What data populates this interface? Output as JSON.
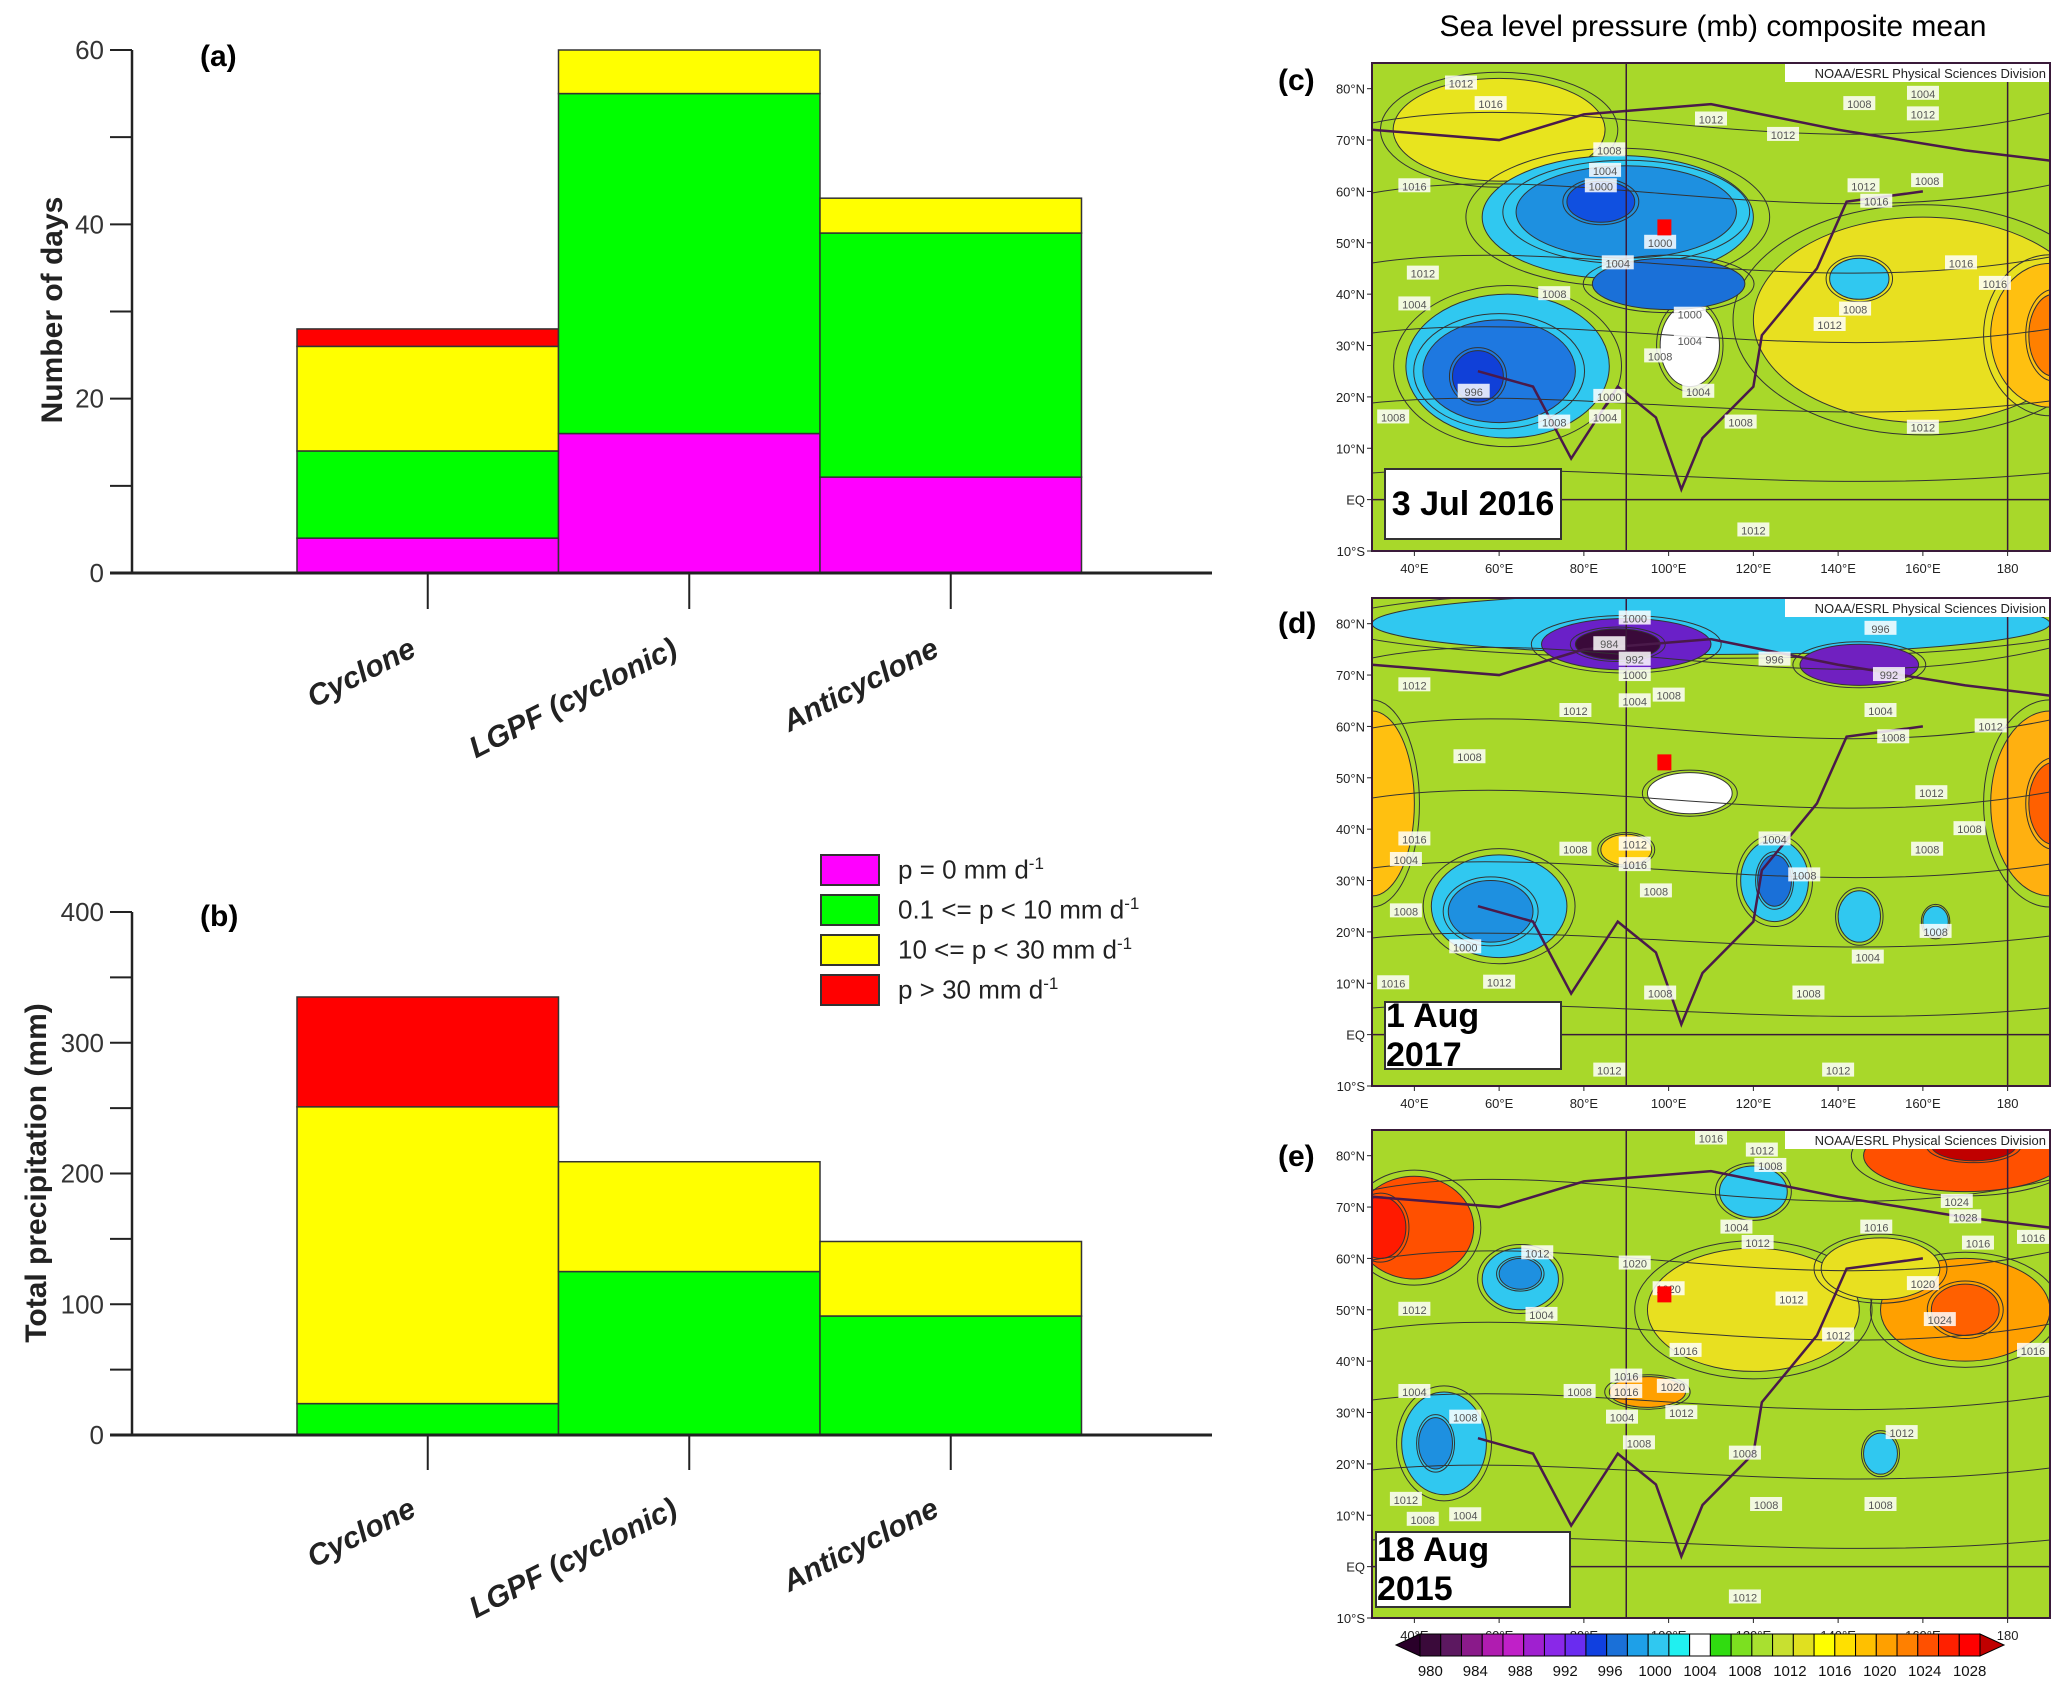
{
  "colors": {
    "p0": "#ff00ff",
    "p0_10": "#00ff00",
    "p10_30": "#ffff00",
    "p30": "#ff0000"
  },
  "chart_data": [
    {
      "type": "bar",
      "stacked": true,
      "panel": "(a)",
      "title": "",
      "xlabel": "",
      "ylabel": "Number of days",
      "ylim": [
        0,
        60
      ],
      "yticks": [
        0,
        20,
        40,
        60
      ],
      "categories": [
        "Cyclone",
        "LGPF (cyclonic)",
        "Anticyclone"
      ],
      "series": [
        {
          "name": "p = 0 mm d-1",
          "key": "p0",
          "values": [
            4,
            16,
            11
          ]
        },
        {
          "name": "0.1 <= p < 10 mm d-1",
          "key": "p0_10",
          "values": [
            10,
            39,
            28
          ]
        },
        {
          "name": "10 <= p < 30 mm d-1",
          "key": "p10_30",
          "values": [
            12,
            5,
            4
          ]
        },
        {
          "name": "p > 30 mm d-1",
          "key": "p30",
          "values": [
            2,
            0,
            0
          ]
        }
      ]
    },
    {
      "type": "bar",
      "stacked": true,
      "panel": "(b)",
      "title": "",
      "xlabel": "",
      "ylabel": "Total precipitation (mm)",
      "ylim": [
        0,
        400
      ],
      "yticks": [
        0,
        100,
        200,
        300,
        400
      ],
      "categories": [
        "Cyclone",
        "LGPF (cyclonic)",
        "Anticyclone"
      ],
      "series": [
        {
          "name": "p = 0 mm d-1",
          "key": "p0",
          "values": [
            0,
            0,
            0
          ]
        },
        {
          "name": "0.1 <= p < 10 mm d-1",
          "key": "p0_10",
          "values": [
            24,
            125,
            91
          ]
        },
        {
          "name": "10 <= p < 30 mm d-1",
          "key": "p10_30",
          "values": [
            227,
            84,
            57
          ]
        },
        {
          "name": "p > 30 mm d-1",
          "key": "p30",
          "values": [
            84,
            0,
            0
          ]
        }
      ],
      "legend": {
        "placement": "top-right",
        "entries": [
          {
            "key": "p0",
            "text": "p = 0 mm d",
            "sup": "-1"
          },
          {
            "key": "p0_10",
            "text": "0.1 <= p < 10 mm d",
            "sup": "-1"
          },
          {
            "key": "p10_30",
            "text": "10 <= p < 30 mm d",
            "sup": "-1"
          },
          {
            "key": "p30",
            "text": "p > 30 mm d",
            "sup": "-1"
          }
        ]
      }
    }
  ],
  "maps": {
    "title": "Sea level pressure (mb) composite mean",
    "credit": "NOAA/ESRL Physical Sciences Division",
    "lon_range": [
      30,
      190
    ],
    "lat_range": [
      -10,
      85
    ],
    "lon_ticks": [
      {
        "v": 40,
        "t": "40°E"
      },
      {
        "v": 60,
        "t": "60°E"
      },
      {
        "v": 80,
        "t": "80°E"
      },
      {
        "v": 100,
        "t": "100°E"
      },
      {
        "v": 120,
        "t": "120°E"
      },
      {
        "v": 140,
        "t": "140°E"
      },
      {
        "v": 160,
        "t": "160°E"
      },
      {
        "v": 180,
        "t": "180"
      }
    ],
    "lat_ticks": [
      {
        "v": 80,
        "t": "80°N"
      },
      {
        "v": 70,
        "t": "70°N"
      },
      {
        "v": 60,
        "t": "60°N"
      },
      {
        "v": 50,
        "t": "50°N"
      },
      {
        "v": 40,
        "t": "40°N"
      },
      {
        "v": 30,
        "t": "30°N"
      },
      {
        "v": 20,
        "t": "20°N"
      },
      {
        "v": 10,
        "t": "10°N"
      },
      {
        "v": 0,
        "t": "EQ"
      },
      {
        "v": -10,
        "t": "10°S"
      }
    ],
    "site": {
      "lon": 99,
      "lat": 53
    },
    "panels": [
      {
        "label": "(c)",
        "date": "3 Jul 2016",
        "contour_labels": [
          {
            "lon": 51,
            "lat": 81,
            "t": "1012"
          },
          {
            "lon": 58,
            "lat": 77,
            "t": "1016"
          },
          {
            "lon": 40,
            "lat": 61,
            "t": "1016"
          },
          {
            "lon": 42,
            "lat": 44,
            "t": "1012"
          },
          {
            "lon": 86,
            "lat": 68,
            "t": "1008"
          },
          {
            "lon": 85,
            "lat": 64,
            "t": "1004"
          },
          {
            "lon": 84,
            "lat": 61,
            "t": "1000"
          },
          {
            "lon": 98,
            "lat": 50,
            "t": "1000"
          },
          {
            "lon": 88,
            "lat": 46,
            "t": "1004"
          },
          {
            "lon": 73,
            "lat": 40,
            "t": "1008"
          },
          {
            "lon": 40,
            "lat": 38,
            "t": "1004"
          },
          {
            "lon": 54,
            "lat": 21,
            "t": "996"
          },
          {
            "lon": 86,
            "lat": 20,
            "t": "1000"
          },
          {
            "lon": 85,
            "lat": 16,
            "t": "1004"
          },
          {
            "lon": 73,
            "lat": 15,
            "t": "1008"
          },
          {
            "lon": 35,
            "lat": 16,
            "t": "1008"
          },
          {
            "lon": 105,
            "lat": 36,
            "t": "1000"
          },
          {
            "lon": 105,
            "lat": 34,
            "t": "1004"
          },
          {
            "lon": 98,
            "lat": 31,
            "t": "1008"
          },
          {
            "lon": 107,
            "lat": 21,
            "t": "1004"
          },
          {
            "lon": 117,
            "lat": 15,
            "t": "1008"
          },
          {
            "lon": 110,
            "lat": 74,
            "t": "1012"
          },
          {
            "lon": 127,
            "lat": 71,
            "t": "1012"
          },
          {
            "lon": 145,
            "lat": 77,
            "t": "1008"
          },
          {
            "lon": 152,
            "lat": 79,
            "t": "1004"
          },
          {
            "lon": 160,
            "lat": 75,
            "t": "1012"
          },
          {
            "lon": 146,
            "lat": 61,
            "t": "1012"
          },
          {
            "lon": 161,
            "lat": 62,
            "t": "1008"
          },
          {
            "lon": 149,
            "lat": 58,
            "t": "1016"
          },
          {
            "lon": 169,
            "lat": 46,
            "t": "1016"
          },
          {
            "lon": 177,
            "lat": 42,
            "t": "1016"
          },
          {
            "lon": 144,
            "lat": 37,
            "t": "1008"
          },
          {
            "lon": 138,
            "lat": 34,
            "t": "1012"
          },
          {
            "lon": 160,
            "lat": 14,
            "t": "1012"
          },
          {
            "lon": 120,
            "lat": -6,
            "t": "1012"
          }
        ]
      },
      {
        "label": "(d)",
        "date": "1 Aug 2017",
        "contour_labels": [
          {
            "lon": 92,
            "lat": 81,
            "t": "1000"
          },
          {
            "lon": 86,
            "lat": 76,
            "t": "984"
          },
          {
            "lon": 92,
            "lat": 73,
            "t": "992"
          },
          {
            "lon": 150,
            "lat": 79,
            "t": "996"
          },
          {
            "lon": 125,
            "lat": 73,
            "t": "996"
          },
          {
            "lon": 152,
            "lat": 70,
            "t": "992"
          },
          {
            "lon": 92,
            "lat": 70,
            "t": "1000"
          },
          {
            "lon": 92,
            "lat": 68,
            "t": "1004"
          },
          {
            "lon": 92,
            "lat": 66,
            "t": "1008"
          },
          {
            "lon": 150,
            "lat": 63,
            "t": "1004"
          },
          {
            "lon": 153,
            "lat": 61,
            "t": "1008"
          },
          {
            "lon": 40,
            "lat": 68,
            "t": "1012"
          },
          {
            "lon": 78,
            "lat": 63,
            "t": "1012"
          },
          {
            "lon": 176,
            "lat": 60,
            "t": "1012"
          },
          {
            "lon": 53,
            "lat": 54,
            "t": "1008"
          },
          {
            "lon": 162,
            "lat": 47,
            "t": "1012"
          },
          {
            "lon": 171,
            "lat": 40,
            "t": "1008"
          },
          {
            "lon": 40,
            "lat": 38,
            "t": "1016"
          },
          {
            "lon": 38,
            "lat": 34,
            "t": "1004"
          },
          {
            "lon": 78,
            "lat": 36,
            "t": "1008"
          },
          {
            "lon": 92,
            "lat": 37,
            "t": "1012"
          },
          {
            "lon": 92,
            "lat": 33,
            "t": "1016"
          },
          {
            "lon": 97,
            "lat": 31,
            "t": "1008"
          },
          {
            "lon": 125,
            "lat": 38,
            "t": "1004"
          },
          {
            "lon": 132,
            "lat": 31,
            "t": "1008"
          },
          {
            "lon": 161,
            "lat": 36,
            "t": "1008"
          },
          {
            "lon": 38,
            "lat": 24,
            "t": "1008"
          },
          {
            "lon": 52,
            "lat": 17,
            "t": "1000"
          },
          {
            "lon": 147,
            "lat": 15,
            "t": "1004"
          },
          {
            "lon": 163,
            "lat": 20,
            "t": "1008"
          },
          {
            "lon": 35,
            "lat": 10,
            "t": "1016"
          },
          {
            "lon": 60,
            "lat": 7,
            "t": "1012"
          },
          {
            "lon": 98,
            "lat": 8,
            "t": "1008"
          },
          {
            "lon": 133,
            "lat": 8,
            "t": "1008"
          },
          {
            "lon": 86,
            "lat": -7,
            "t": "1012"
          },
          {
            "lon": 140,
            "lat": -7,
            "t": "1012"
          }
        ]
      },
      {
        "label": "(e)",
        "date": "18 Aug 2015",
        "contour_labels": [
          {
            "lon": 110,
            "lat": 84,
            "t": "1016"
          },
          {
            "lon": 122,
            "lat": 81,
            "t": "1012"
          },
          {
            "lon": 124,
            "lat": 78,
            "t": "1008"
          },
          {
            "lon": 116,
            "lat": 66,
            "t": "1004"
          },
          {
            "lon": 121,
            "lat": 63,
            "t": "1012"
          },
          {
            "lon": 168,
            "lat": 71,
            "t": "1024"
          },
          {
            "lon": 170,
            "lat": 68,
            "t": "1028"
          },
          {
            "lon": 173,
            "lat": 66,
            "t": "1016"
          },
          {
            "lon": 149,
            "lat": 66,
            "t": "1016"
          },
          {
            "lon": 189,
            "lat": 64,
            "t": "1016"
          },
          {
            "lon": 69,
            "lat": 61,
            "t": "1012"
          },
          {
            "lon": 92,
            "lat": 59,
            "t": "1020"
          },
          {
            "lon": 100,
            "lat": 54,
            "t": "1020"
          },
          {
            "lon": 70,
            "lat": 49,
            "t": "1004"
          },
          {
            "lon": 40,
            "lat": 50,
            "t": "1012"
          },
          {
            "lon": 129,
            "lat": 52,
            "t": "1012"
          },
          {
            "lon": 160,
            "lat": 55,
            "t": "1020"
          },
          {
            "lon": 164,
            "lat": 48,
            "t": "1024"
          },
          {
            "lon": 104,
            "lat": 42,
            "t": "1016"
          },
          {
            "lon": 140,
            "lat": 45,
            "t": "1012"
          },
          {
            "lon": 187,
            "lat": 42,
            "t": "1016"
          },
          {
            "lon": 40,
            "lat": 34,
            "t": "1004"
          },
          {
            "lon": 52,
            "lat": 29,
            "t": "1008"
          },
          {
            "lon": 79,
            "lat": 34,
            "t": "1008"
          },
          {
            "lon": 90,
            "lat": 34,
            "t": "1016"
          },
          {
            "lon": 90,
            "lat": 37,
            "t": "1016"
          },
          {
            "lon": 101,
            "lat": 35,
            "t": "1020"
          },
          {
            "lon": 103,
            "lat": 33,
            "t": "1012"
          },
          {
            "lon": 89,
            "lat": 29,
            "t": "1004"
          },
          {
            "lon": 93,
            "lat": 24,
            "t": "1008"
          },
          {
            "lon": 118,
            "lat": 22,
            "t": "1008"
          },
          {
            "lon": 155,
            "lat": 26,
            "t": "1012"
          },
          {
            "lon": 123,
            "lat": 12,
            "t": "1008"
          },
          {
            "lon": 150,
            "lat": 12,
            "t": "1008"
          },
          {
            "lon": 38,
            "lat": 13,
            "t": "1012"
          },
          {
            "lon": 52,
            "lat": 10,
            "t": "1004"
          },
          {
            "lon": 50,
            "lat": 6,
            "t": "1008"
          },
          {
            "lon": 118,
            "lat": -6,
            "t": "1012"
          }
        ]
      }
    ],
    "colorbar": {
      "labels": [
        "980",
        "984",
        "988",
        "992",
        "996",
        "1000",
        "1004",
        "1008",
        "1012",
        "1016",
        "1020",
        "1024",
        "1028"
      ],
      "colors": [
        "#3a0a3a",
        "#5c1860",
        "#8a1a8a",
        "#b01cb0",
        "#c020c8",
        "#a020d0",
        "#8a28e8",
        "#6a2cf0",
        "#1040e0",
        "#1a70d8",
        "#1ea0e8",
        "#30c8f0",
        "#20f0f0",
        "#ffffff",
        "#30dc10",
        "#7ce020",
        "#a8e030",
        "#c8e030",
        "#e0e020",
        "#ffff00",
        "#ffe000",
        "#ffc000",
        "#ffa000",
        "#ff8000",
        "#ff5000",
        "#ff2000",
        "#ff0000"
      ],
      "low_arrow": "#2a002a",
      "high_arrow": "#c00000"
    }
  }
}
